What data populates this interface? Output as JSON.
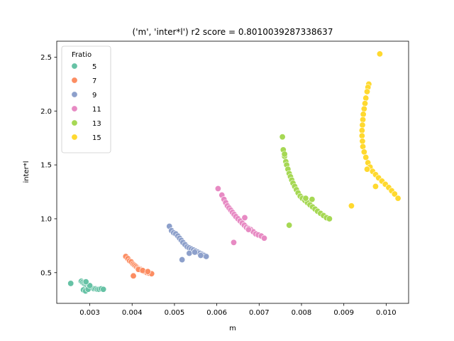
{
  "chart_data": {
    "type": "scatter",
    "title": "('m', 'inter*l') r2 score = 0.8010039287338637",
    "xlabel": "m",
    "ylabel": "inter*l",
    "xlim": [
      0.00222,
      0.01053
    ],
    "ylim": [
      0.215,
      2.648
    ],
    "xticks": [
      0.003,
      0.004,
      0.005,
      0.006,
      0.007,
      0.008,
      0.009,
      0.01
    ],
    "xtick_labels": [
      "0.003",
      "0.004",
      "0.005",
      "0.006",
      "0.007",
      "0.008",
      "0.009",
      "0.010"
    ],
    "yticks": [
      0.5,
      1.0,
      1.5,
      2.0,
      2.5
    ],
    "ytick_labels": [
      "0.5",
      "1.0",
      "1.5",
      "2.0",
      "2.5"
    ],
    "grid": false,
    "legend": {
      "title": "Fratio",
      "placement": "top-left"
    },
    "series": [
      {
        "name": "5",
        "color": "#66c2a5",
        "points": [
          [
            0.00255,
            0.4
          ],
          [
            0.0028,
            0.42
          ],
          [
            0.00283,
            0.41
          ],
          [
            0.00286,
            0.4
          ],
          [
            0.00289,
            0.39
          ],
          [
            0.00292,
            0.38
          ],
          [
            0.00295,
            0.37
          ],
          [
            0.00298,
            0.37
          ],
          [
            0.00301,
            0.36
          ],
          [
            0.00304,
            0.36
          ],
          [
            0.00307,
            0.355
          ],
          [
            0.0031,
            0.35
          ],
          [
            0.00314,
            0.35
          ],
          [
            0.00318,
            0.345
          ],
          [
            0.00322,
            0.345
          ],
          [
            0.00327,
            0.35
          ],
          [
            0.00332,
            0.345
          ],
          [
            0.00285,
            0.34
          ],
          [
            0.0029,
            0.33
          ],
          [
            0.00296,
            0.345
          ],
          [
            0.003,
            0.38
          ],
          [
            0.00291,
            0.415
          ]
        ]
      },
      {
        "name": "7",
        "color": "#fc8d62",
        "points": [
          [
            0.00385,
            0.65
          ],
          [
            0.0039,
            0.63
          ],
          [
            0.00394,
            0.61
          ],
          [
            0.00398,
            0.6
          ],
          [
            0.00402,
            0.58
          ],
          [
            0.00405,
            0.57
          ],
          [
            0.00408,
            0.56
          ],
          [
            0.00411,
            0.55
          ],
          [
            0.00414,
            0.54
          ],
          [
            0.00417,
            0.535
          ],
          [
            0.0042,
            0.53
          ],
          [
            0.00423,
            0.52
          ],
          [
            0.00426,
            0.515
          ],
          [
            0.00429,
            0.51
          ],
          [
            0.00432,
            0.505
          ],
          [
            0.00435,
            0.5
          ],
          [
            0.0044,
            0.495
          ],
          [
            0.00446,
            0.49
          ],
          [
            0.00403,
            0.47
          ],
          [
            0.00415,
            0.53
          ],
          [
            0.00425,
            0.52
          ],
          [
            0.00437,
            0.51
          ]
        ]
      },
      {
        "name": "9",
        "color": "#8da0cb",
        "points": [
          [
            0.00488,
            0.93
          ],
          [
            0.00493,
            0.89
          ],
          [
            0.00498,
            0.87
          ],
          [
            0.00503,
            0.86
          ],
          [
            0.00508,
            0.84
          ],
          [
            0.00512,
            0.82
          ],
          [
            0.00516,
            0.8
          ],
          [
            0.0052,
            0.78
          ],
          [
            0.00525,
            0.76
          ],
          [
            0.0053,
            0.74
          ],
          [
            0.00535,
            0.73
          ],
          [
            0.0054,
            0.72
          ],
          [
            0.00545,
            0.71
          ],
          [
            0.0055,
            0.7
          ],
          [
            0.00555,
            0.69
          ],
          [
            0.0056,
            0.68
          ],
          [
            0.00565,
            0.67
          ],
          [
            0.0057,
            0.66
          ],
          [
            0.00575,
            0.65
          ],
          [
            0.00518,
            0.62
          ],
          [
            0.00535,
            0.68
          ],
          [
            0.00548,
            0.69
          ],
          [
            0.00562,
            0.66
          ]
        ]
      },
      {
        "name": "11",
        "color": "#e78ac3",
        "points": [
          [
            0.00603,
            1.28
          ],
          [
            0.00612,
            1.22
          ],
          [
            0.00617,
            1.18
          ],
          [
            0.00621,
            1.15
          ],
          [
            0.00625,
            1.12
          ],
          [
            0.00629,
            1.1
          ],
          [
            0.00633,
            1.08
          ],
          [
            0.00637,
            1.06
          ],
          [
            0.00641,
            1.04
          ],
          [
            0.00645,
            1.02
          ],
          [
            0.0065,
            1.0
          ],
          [
            0.00655,
            0.98
          ],
          [
            0.0066,
            0.96
          ],
          [
            0.00665,
            0.94
          ],
          [
            0.0067,
            0.92
          ],
          [
            0.00675,
            0.91
          ],
          [
            0.0068,
            0.9
          ],
          [
            0.00686,
            0.88
          ],
          [
            0.00692,
            0.86
          ],
          [
            0.00698,
            0.85
          ],
          [
            0.00705,
            0.84
          ],
          [
            0.00712,
            0.82
          ],
          [
            0.0064,
            0.78
          ],
          [
            0.00666,
            1.01
          ],
          [
            0.00675,
            0.9
          ]
        ]
      },
      {
        "name": "13",
        "color": "#a6d854",
        "points": [
          [
            0.00755,
            1.76
          ],
          [
            0.00757,
            1.64
          ],
          [
            0.0076,
            1.58
          ],
          [
            0.00763,
            1.53
          ],
          [
            0.00765,
            1.5
          ],
          [
            0.00768,
            1.46
          ],
          [
            0.00771,
            1.42
          ],
          [
            0.00774,
            1.39
          ],
          [
            0.00777,
            1.36
          ],
          [
            0.0078,
            1.33
          ],
          [
            0.00784,
            1.3
          ],
          [
            0.00788,
            1.27
          ],
          [
            0.00792,
            1.24
          ],
          [
            0.00797,
            1.21
          ],
          [
            0.00802,
            1.19
          ],
          [
            0.00808,
            1.17
          ],
          [
            0.00814,
            1.15
          ],
          [
            0.0082,
            1.13
          ],
          [
            0.00826,
            1.11
          ],
          [
            0.00832,
            1.09
          ],
          [
            0.00838,
            1.07
          ],
          [
            0.00845,
            1.05
          ],
          [
            0.00852,
            1.03
          ],
          [
            0.00859,
            1.01
          ],
          [
            0.00866,
            1.0
          ],
          [
            0.00771,
            0.94
          ],
          [
            0.0081,
            1.19
          ],
          [
            0.00825,
            1.18
          ],
          [
            0.0076,
            1.6
          ]
        ]
      },
      {
        "name": "15",
        "color": "#ffd92f",
        "points": [
          [
            0.00985,
            2.53
          ],
          [
            0.00959,
            2.25
          ],
          [
            0.00957,
            2.22
          ],
          [
            0.00955,
            2.18
          ],
          [
            0.00952,
            2.12
          ],
          [
            0.0095,
            2.07
          ],
          [
            0.00948,
            2.02
          ],
          [
            0.00946,
            1.97
          ],
          [
            0.00945,
            1.92
          ],
          [
            0.00944,
            1.87
          ],
          [
            0.00943,
            1.82
          ],
          [
            0.00943,
            1.77
          ],
          [
            0.00944,
            1.72
          ],
          [
            0.00945,
            1.67
          ],
          [
            0.00948,
            1.62
          ],
          [
            0.00952,
            1.57
          ],
          [
            0.00957,
            1.52
          ],
          [
            0.00962,
            1.48
          ],
          [
            0.00968,
            1.44
          ],
          [
            0.00975,
            1.41
          ],
          [
            0.00982,
            1.38
          ],
          [
            0.0099,
            1.35
          ],
          [
            0.00998,
            1.32
          ],
          [
            0.01006,
            1.29
          ],
          [
            0.01013,
            1.26
          ],
          [
            0.0102,
            1.23
          ],
          [
            0.01028,
            1.19
          ],
          [
            0.00918,
            1.12
          ],
          [
            0.00975,
            1.3
          ],
          [
            0.00955,
            1.46
          ]
        ]
      }
    ]
  }
}
